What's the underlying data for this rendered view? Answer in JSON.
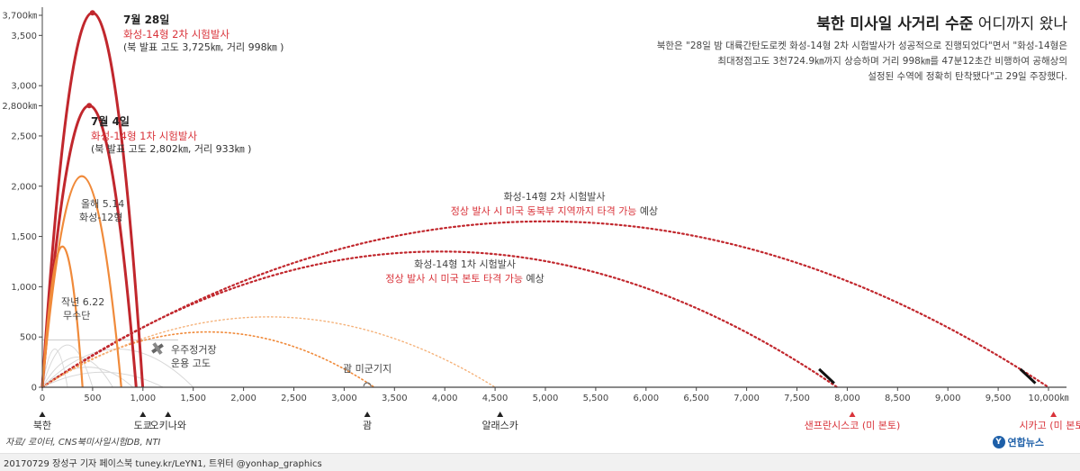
{
  "title": {
    "bold": "북한 미사일 사거리 수준",
    "light": "어디까지 왔나"
  },
  "description": [
    "북한은 \"28일 밤 대륙간탄도로켓 화성-14형 2차 시험발사가 성공적으로 진행되었다\"면서 \"화성-14형은",
    "최대정점고도 3천724.9㎞까지 상승하며 거리 998㎞를 47분12초간 비행하여 공해상의",
    "설정된 수역에 정확히 탄착됐다\"고 29일 주장했다."
  ],
  "footer": "20170729 장성구 기자  페이스북 tuney.kr/LeYN1, 트위터 @yonhap_graphics",
  "source": "자료/ 로이터, CNS북미사일시험DB, NTI",
  "logo": "연합뉴스",
  "logo_mark": "Y",
  "colors": {
    "dark_red": "#c1272d",
    "red": "#d9333a",
    "orange": "#f08a3a",
    "light_orange": "#f5b27a",
    "gray": "#bbbbbb",
    "axis": "#444444"
  },
  "chart_data": {
    "type": "line",
    "xlabel": "",
    "ylabel": "",
    "xlim": [
      0,
      10000
    ],
    "ylim": [
      0,
      3800
    ],
    "x_ticks": [
      0,
      500,
      1000,
      1500,
      2000,
      2500,
      3000,
      3500,
      4000,
      4500,
      5000,
      5500,
      6000,
      6500,
      7000,
      7500,
      8000,
      8500,
      9000,
      9500,
      10000
    ],
    "x_tick_labels": [
      "0",
      "500",
      "1,000",
      "1,500",
      "2,000",
      "2,500",
      "3,000",
      "3,500",
      "4,000",
      "4,500",
      "5,000",
      "5,500",
      "6,000",
      "6,500",
      "7,000",
      "7,500",
      "8,000",
      "8,500",
      "9,000",
      "9,500",
      "10,000㎞"
    ],
    "y_ticks": [
      0,
      500,
      1000,
      1500,
      2000,
      2500,
      2800,
      3000,
      3500,
      3700
    ],
    "y_tick_labels": [
      "0",
      "500",
      "1,000",
      "1,500",
      "2,000",
      "2,500",
      "2,800㎞",
      "3,000",
      "3,500",
      "3,700㎞"
    ],
    "series": [
      {
        "kind": "lofted",
        "distance": 998,
        "apogee": 3725,
        "style": "dark_red"
      },
      {
        "kind": "lofted",
        "distance": 933,
        "apogee": 2802,
        "style": "dark_red"
      },
      {
        "kind": "lofted",
        "distance": 785,
        "apogee": 2100,
        "style": "orange"
      },
      {
        "kind": "lofted",
        "distance": 400,
        "apogee": 1400,
        "style": "orange"
      },
      {
        "kind": "projected",
        "distance": 10000,
        "apogee": 1650,
        "style": "red_dotted"
      },
      {
        "kind": "projected",
        "distance": 7900,
        "apogee": 1350,
        "style": "red_dotted"
      },
      {
        "kind": "projected",
        "distance": 3300,
        "apogee": 550,
        "style": "orange_dotted"
      },
      {
        "kind": "projected",
        "distance": 4500,
        "apogee": 700,
        "style": "light_orange_dotted"
      }
    ],
    "annotations": {
      "jul28_date": "7월 28일",
      "jul28_name": "화성-14형 2차 시험발사",
      "jul28_detail": "(북 발표 고도 3,725㎞, 거리 998㎞ )",
      "jul4_date": "7월 4일",
      "jul4_name": "화성-14형 1차 시험발사",
      "jul4_detail": "(북 발표 고도 2,802㎞, 거리 933㎞ )",
      "may14_1": "올해 5.14",
      "may14_2": "화성-12형",
      "jun22_1": "작년 6.22",
      "jun22_2": "무수단",
      "iss_1": "우주정거장",
      "iss_2": "운용 고도",
      "guam_base": "괌 미군기지",
      "proj2_1": "화성-14형 2차 시험발사",
      "proj2_2_red": "정상 발사 시 미국 동북부 지역까지 타격 가능",
      "proj2_2_dark": " 예상",
      "proj1_1": "화성-14형 1차 시험발사",
      "proj1_2_red": "정상 발사 시 미국 본토 타격 가능",
      "proj1_2_dark": " 예상"
    },
    "places": [
      {
        "name": "북한",
        "x": 0,
        "red": false
      },
      {
        "name": "도쿄",
        "x": 1000,
        "red": false
      },
      {
        "name": "오키나와",
        "x": 1250,
        "red": false
      },
      {
        "name": "괌",
        "x": 3230,
        "red": false
      },
      {
        "name": "알래스카",
        "x": 4550,
        "red": false
      },
      {
        "name": "샌프란시스코 (미 본토)",
        "x": 8050,
        "red": true
      },
      {
        "name": "시카고 (미 본토)",
        "x": 10050,
        "red": true
      }
    ]
  }
}
